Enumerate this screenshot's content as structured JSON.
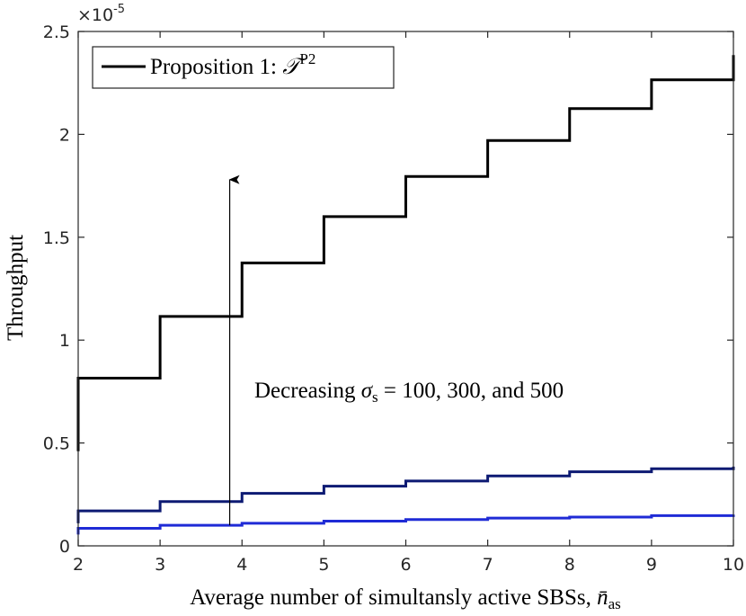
{
  "chart_data": {
    "type": "line",
    "style": "step",
    "xlabel": "Average number of simultansly active SBSs, ",
    "xlabel_symbol": "n̄",
    "xlabel_subscript": "as",
    "ylabel": "Throughput",
    "y_exponent_base": "×10",
    "y_exponent": "-5",
    "xlim": [
      2,
      10
    ],
    "ylim": [
      0,
      2.5
    ],
    "xticks": [
      2,
      3,
      4,
      5,
      6,
      7,
      8,
      9,
      10
    ],
    "yticks": [
      0,
      0.5,
      1,
      1.5,
      2,
      2.5
    ],
    "ytick_labels": [
      "0",
      "0.5",
      "1",
      "1.5",
      "2",
      "2.5"
    ],
    "legend": {
      "position": "top-left",
      "label": "Proposition 1: ",
      "label_symbol": "𝒯",
      "label_superscript": "P2"
    },
    "annotation": {
      "prefix": "Decreasing ",
      "symbol": "σ",
      "subscript": "s",
      "suffix": " = 100, 300, and 500",
      "arrow_x": 3.85,
      "arrow_from_y": 0.1,
      "arrow_to_y": 1.78
    },
    "series": [
      {
        "name": "σs = 100",
        "color": "#000000",
        "x": [
          2,
          3,
          4,
          5,
          6,
          7,
          8,
          9,
          10
        ],
        "values": [
          0.815,
          1.115,
          1.375,
          1.6,
          1.795,
          1.97,
          2.125,
          2.265,
          2.385
        ],
        "start_value": 0.46
      },
      {
        "name": "σs = 300",
        "color": "#0d1a73",
        "x": [
          2,
          3,
          4,
          5,
          6,
          7,
          8,
          9,
          10
        ],
        "values": [
          0.17,
          0.215,
          0.255,
          0.29,
          0.315,
          0.34,
          0.36,
          0.375,
          0.385
        ],
        "start_value": 0.11
      },
      {
        "name": "σs = 500",
        "color": "#1f2bd6",
        "x": [
          2,
          3,
          4,
          5,
          6,
          7,
          8,
          9,
          10
        ],
        "values": [
          0.085,
          0.1,
          0.11,
          0.12,
          0.128,
          0.135,
          0.14,
          0.147,
          0.152
        ],
        "start_value": 0.055
      }
    ]
  }
}
